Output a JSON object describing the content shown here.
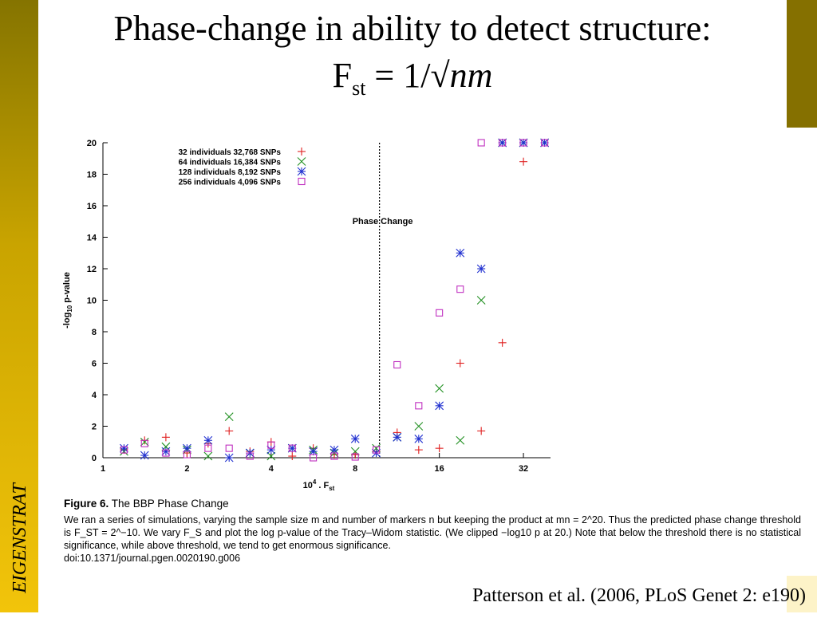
{
  "slide": {
    "side_label": "EIGENSTRAT",
    "title": "Phase-change in ability to detect structure:",
    "formula": {
      "lhs": "F",
      "sub": "st",
      "mid": " = 1/√",
      "var": "nm"
    },
    "citation": "Patterson et al. (2006, PLoS Genet 2: e190)",
    "colors": {
      "left_bar_top": "#857400",
      "left_bar_bottom": "#f2c40a",
      "right_block": "#857000"
    }
  },
  "chart_data": {
    "type": "scatter",
    "xlabel": "10^4 . F_st",
    "ylabel": "-log10 p-value",
    "x_scale": "log",
    "xticks": [
      1,
      2,
      4,
      8,
      16,
      32
    ],
    "xlim": [
      1,
      40
    ],
    "yticks": [
      0,
      2,
      4,
      6,
      8,
      10,
      12,
      14,
      16,
      18,
      20
    ],
    "ylim": [
      0,
      20
    ],
    "legend_position": "top-left",
    "annotation": {
      "label": "Phase Change",
      "x": 9.77
    },
    "series": [
      {
        "name": "32 individuals   32,768 SNPs",
        "marker": "+",
        "color": "#e02020",
        "x": [
          1.19,
          1.41,
          1.68,
          2.0,
          2.38,
          2.83,
          3.36,
          4.0,
          4.76,
          5.66,
          6.73,
          8.0,
          9.51,
          11.3,
          13.5,
          16.0,
          19.0,
          22.6,
          26.9,
          32.0
        ],
        "y": [
          0.5,
          1.1,
          1.3,
          0.3,
          0.9,
          1.7,
          0.4,
          1.0,
          0.1,
          0.6,
          0.2,
          0.2,
          0.4,
          1.6,
          0.5,
          0.6,
          6.0,
          1.7,
          7.3,
          18.8
        ]
      },
      {
        "name": "64 individuals   16,384 SNPs",
        "marker": "x",
        "color": "#209020",
        "x": [
          1.19,
          1.41,
          1.68,
          2.0,
          2.38,
          2.83,
          3.36,
          4.0,
          4.76,
          5.66,
          6.73,
          8.0,
          9.51,
          11.3,
          13.5,
          16.0,
          19.0,
          22.6,
          26.9,
          32.0,
          38.1
        ],
        "y": [
          0.4,
          1.0,
          0.7,
          0.5,
          0.1,
          2.6,
          0.3,
          0.1,
          0.6,
          0.5,
          0.3,
          0.4,
          0.6,
          1.3,
          2.0,
          4.4,
          1.1,
          10.0,
          20.0,
          20.0,
          20.0
        ]
      },
      {
        "name": "128 individuals   8,192 SNPs",
        "marker": "*",
        "color": "#2030d0",
        "x": [
          1.19,
          1.41,
          1.68,
          2.0,
          2.38,
          2.83,
          3.36,
          4.0,
          4.76,
          5.66,
          6.73,
          8.0,
          9.51,
          11.3,
          13.5,
          16.0,
          19.0,
          22.6,
          26.9,
          32.0,
          38.1
        ],
        "y": [
          0.6,
          0.15,
          0.4,
          0.6,
          1.1,
          0.0,
          0.3,
          0.5,
          0.6,
          0.4,
          0.5,
          1.2,
          0.3,
          1.3,
          1.2,
          3.3,
          13.0,
          12.0,
          20.0,
          20.0,
          20.0
        ]
      },
      {
        "name": "256 individuals   4,096 SNPs",
        "marker": "square",
        "color": "#c030c0",
        "x": [
          1.19,
          1.41,
          1.68,
          2.0,
          2.38,
          2.83,
          3.36,
          4.0,
          4.76,
          5.66,
          6.73,
          8.0,
          9.51,
          11.3,
          13.5,
          16.0,
          19.0,
          22.6,
          26.9,
          32.0,
          38.1
        ],
        "y": [
          0.5,
          0.9,
          0.3,
          0.2,
          0.6,
          0.6,
          0.1,
          0.8,
          0.6,
          0.0,
          0.1,
          0.05,
          0.5,
          5.9,
          3.3,
          9.2,
          10.7,
          20.0,
          20.0,
          20.0,
          20.0
        ]
      }
    ]
  },
  "caption": {
    "label": "Figure 6.",
    "title": " The BBP Phase Change",
    "body": "We ran a series of simulations, varying the sample size m and number of markers n but keeping the product at mn = 2^20. Thus the predicted phase change threshold is F_ST = 2^−10. We vary F_S and plot the log p-value of the Tracy–Widom statistic. (We clipped −log10 p at 20.) Note that below the threshold there is no statistical significance, while above threshold, we tend to get enormous significance.",
    "doi": "doi:10.1371/journal.pgen.0020190.g006"
  }
}
